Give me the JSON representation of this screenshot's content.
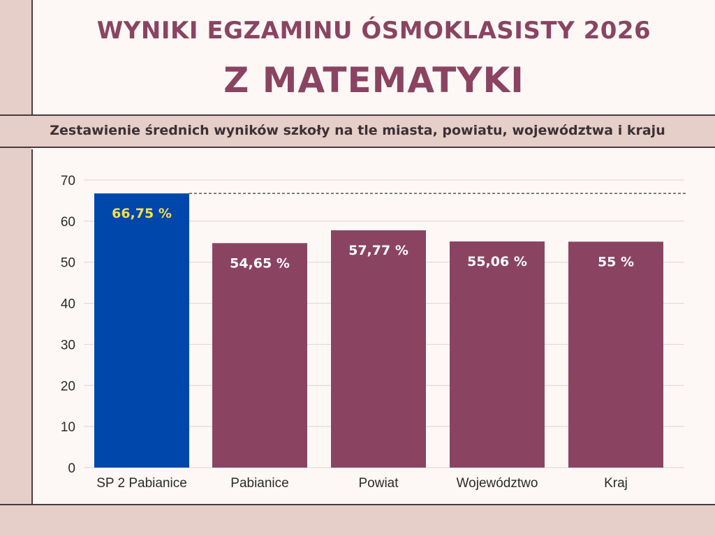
{
  "header": {
    "title_line1": "WYNIKI EGZAMINU ÓSMOKLASISTY 2026",
    "title_line2": "Z MATEMATYKI",
    "subtitle": "Zestawienie średnich wyników szkoły na tle miasta, powiatu, województwa i kraju"
  },
  "colors": {
    "highlight_bar": "#0047ab",
    "bar": "#8a4462",
    "highlight_label": "#f2e14c",
    "label": "#ffffff",
    "background": "#fdf8f6",
    "band": "#e6cfc8"
  },
  "chart_data": {
    "type": "bar",
    "title": "",
    "xlabel": "",
    "ylabel": "",
    "categories": [
      "SP 2 Pabianice",
      "Pabianice",
      "Powiat",
      "Województwo",
      "Kraj"
    ],
    "values": [
      66.75,
      54.65,
      57.77,
      55.06,
      55
    ],
    "value_labels": [
      "66,75 %",
      "54,65 %",
      "57,77 %",
      "55,06 %",
      "55 %"
    ],
    "highlight_index": 0,
    "reference_line": 66.75,
    "ylim": [
      0,
      70
    ],
    "yticks": [
      0,
      10,
      20,
      30,
      40,
      50,
      60,
      70
    ],
    "grid": true,
    "legend": "none"
  }
}
